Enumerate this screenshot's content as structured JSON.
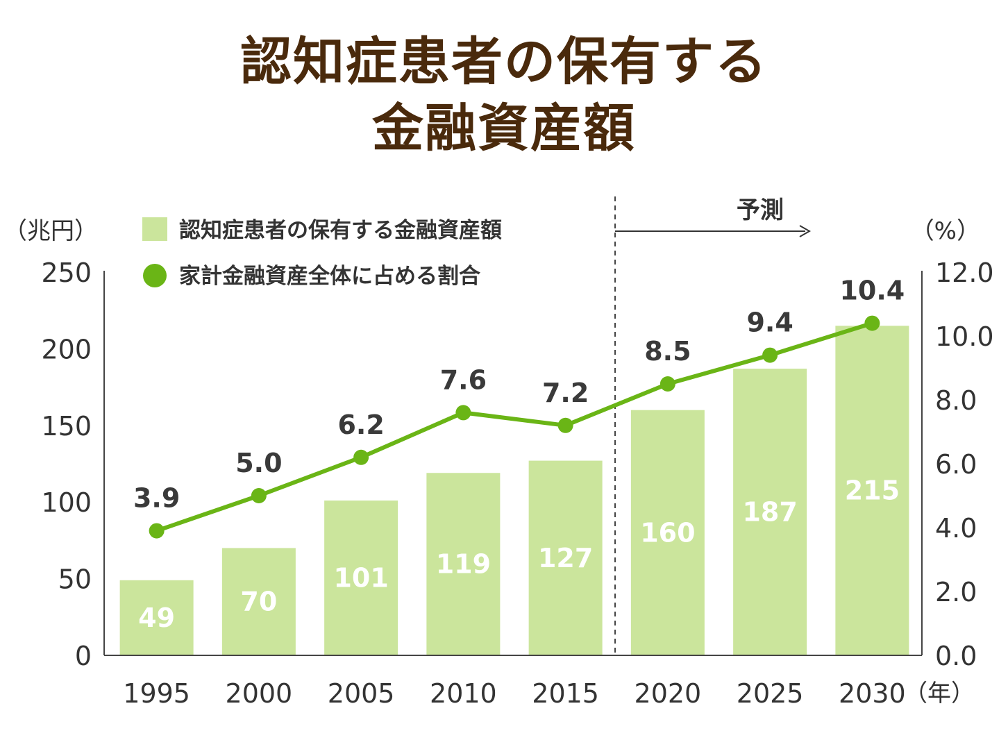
{
  "title_line1": "認知症患者の保有する",
  "title_line2": "金融資産額",
  "chart_data": {
    "type": "bar",
    "categories": [
      "1995",
      "2000",
      "2005",
      "2010",
      "2015",
      "2020",
      "2025",
      "2030"
    ],
    "series": [
      {
        "name": "認知症患者の保有する金融資産額",
        "type": "bar",
        "axis": "left",
        "values": [
          49,
          70,
          101,
          119,
          127,
          160,
          187,
          215
        ]
      },
      {
        "name": "家計金融資産全体に占める割合",
        "type": "line",
        "axis": "right",
        "values": [
          3.9,
          5.0,
          6.2,
          7.6,
          7.2,
          8.5,
          9.4,
          10.4
        ]
      }
    ],
    "value_labels_bar": [
      "49",
      "70",
      "101",
      "119",
      "127",
      "160",
      "187",
      "215"
    ],
    "value_labels_line": [
      "3.9",
      "5.0",
      "6.2",
      "7.6",
      "7.2",
      "8.5",
      "9.4",
      "10.4"
    ],
    "y_left": {
      "unit_label": "（兆円）",
      "ticks": [
        "0",
        "50",
        "100",
        "150",
        "200",
        "250"
      ],
      "lim": [
        0,
        250
      ]
    },
    "y_right": {
      "unit_label": "（%）",
      "ticks": [
        "0.0",
        "2.0",
        "4.0",
        "6.0",
        "8.0",
        "10.0",
        "12.0"
      ],
      "lim": [
        0,
        12
      ]
    },
    "x_unit_label": "（年）",
    "forecast_label": "予測",
    "forecast_after": "2015",
    "colors": {
      "bar": "#cbe59c",
      "line": "#6ab516",
      "title": "#4a2a0c",
      "text": "#333333"
    },
    "legend_position": "top-left",
    "grid": false
  }
}
